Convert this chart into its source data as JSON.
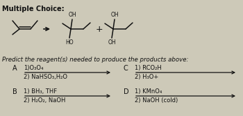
{
  "title": "Multiple Choice:",
  "question": "Predict the reagent(s) needed to produce the products above:",
  "bg_color": "#cdc9b8",
  "choices": {
    "A": {
      "line1": "1)O₃O₄",
      "line2": "2) NaHSO₃,H₂O"
    },
    "B": {
      "line1": "1) BH₃, THF",
      "line2": "2) H₂O₂, NaOH"
    },
    "C": {
      "line1": "1) RCO₂H",
      "line2": "2) H₃O+"
    },
    "D": {
      "line1": "1) KMnO₄",
      "line2": "2) NaOH (cold)"
    }
  },
  "font_color": "#111111",
  "title_fontsize": 7.0,
  "question_fontsize": 6.2,
  "choice_label_fontsize": 7.0,
  "choice_fontsize": 6.0
}
